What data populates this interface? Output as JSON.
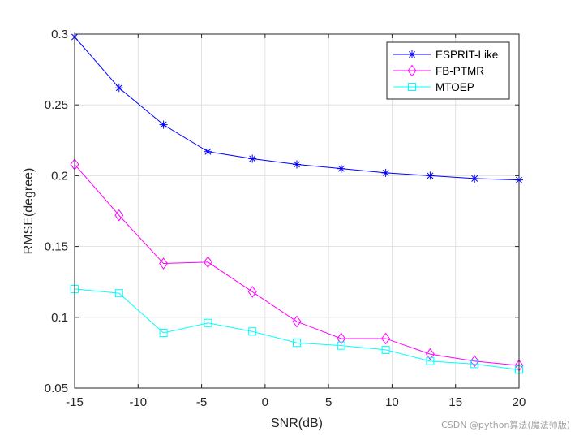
{
  "chart_data": {
    "type": "line",
    "title": "",
    "xlabel": "SNR(dB)",
    "ylabel": "RMSE(degree)",
    "xlim": [
      -15,
      20
    ],
    "ylim": [
      0.05,
      0.3
    ],
    "xticks": [
      -15,
      -10,
      -5,
      0,
      5,
      10,
      15,
      20
    ],
    "yticks": [
      0.05,
      0.1,
      0.15,
      0.2,
      0.25,
      0.3
    ],
    "grid": true,
    "legend_position": "top-right",
    "x": [
      -15,
      -11.5,
      -8,
      -4.5,
      -1,
      2.5,
      6,
      9.5,
      13,
      16.5,
      20
    ],
    "series": [
      {
        "name": "ESPRIT-Like",
        "color": "#0000ff",
        "marker": "asterisk",
        "values": [
          0.298,
          0.262,
          0.236,
          0.217,
          0.212,
          0.208,
          0.205,
          0.202,
          0.2,
          0.198,
          0.197
        ]
      },
      {
        "name": "FB-PTMR",
        "color": "#ff00ff",
        "marker": "diamond",
        "values": [
          0.208,
          0.172,
          0.138,
          0.139,
          0.118,
          0.097,
          0.085,
          0.085,
          0.074,
          0.069,
          0.066
        ]
      },
      {
        "name": "MTOEP",
        "color": "#00ffff",
        "marker": "square",
        "values": [
          0.12,
          0.117,
          0.089,
          0.096,
          0.09,
          0.082,
          0.08,
          0.077,
          0.069,
          0.067,
          0.063
        ]
      }
    ]
  },
  "watermark": "CSDN @python算法(魔法师版)"
}
